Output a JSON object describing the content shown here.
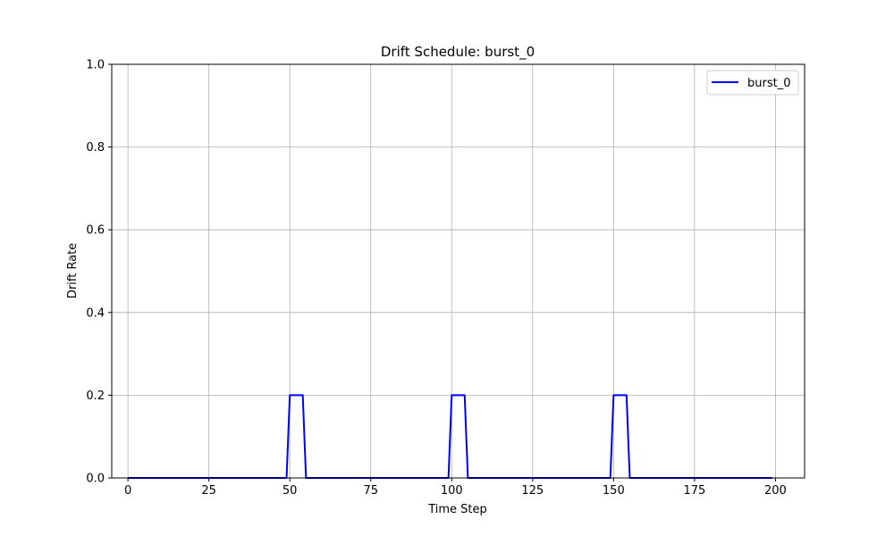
{
  "chart_data": {
    "type": "line",
    "title": "Drift Schedule: burst_0",
    "xlabel": "Time Step",
    "ylabel": "Drift Rate",
    "xlim": [
      -5,
      209
    ],
    "ylim": [
      0,
      1.0
    ],
    "xticks": [
      0,
      25,
      50,
      75,
      100,
      125,
      150,
      175,
      200
    ],
    "xtick_labels": [
      "0",
      "25",
      "50",
      "75",
      "100",
      "125",
      "150",
      "175",
      "200"
    ],
    "yticks": [
      0,
      0.2,
      0.4,
      0.6,
      0.8,
      1.0
    ],
    "ytick_labels": [
      "0.0",
      "0.2",
      "0.4",
      "0.6",
      "0.8",
      "1.0"
    ],
    "grid": true,
    "legend_position": "upper-right",
    "series": [
      {
        "name": "burst_0",
        "color": "#0000ff",
        "x": [
          0,
          49,
          50,
          54,
          55,
          99,
          100,
          104,
          105,
          149,
          150,
          154,
          155,
          199
        ],
        "y": [
          0,
          0,
          0.2,
          0.2,
          0,
          0,
          0.2,
          0.2,
          0,
          0,
          0.2,
          0.2,
          0,
          0
        ]
      }
    ]
  }
}
